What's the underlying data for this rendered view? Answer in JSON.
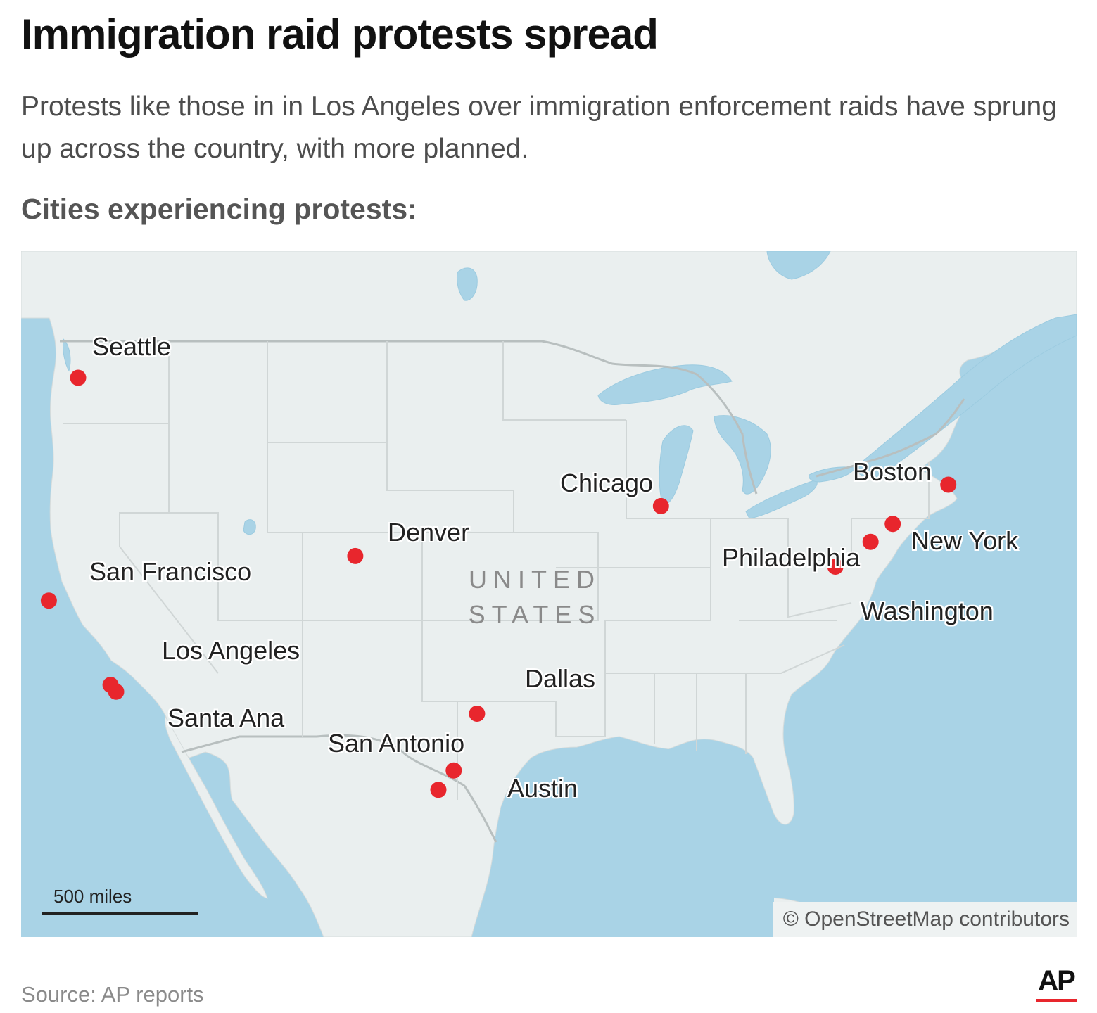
{
  "header": {
    "title": "Immigration raid protests spread",
    "subtitle": "Protests like those in in Los Angeles over immigration enforcement raids have sprung up across the country, with more planned.",
    "section_label": "Cities experiencing protests:"
  },
  "map": {
    "country_label_line1": "UNITED",
    "country_label_line2": "STATES",
    "scale_label": "500 miles",
    "attribution": "© OpenStreetMap contributors",
    "colors": {
      "water": "#a9d3e6",
      "land": "#eaefef",
      "border": "#cfd5d5",
      "marker": "#e8262d"
    },
    "cities": [
      {
        "name": "Seattle",
        "lat": 47.61,
        "lon": -122.33
      },
      {
        "name": "San Francisco",
        "lat": 37.77,
        "lon": -122.42
      },
      {
        "name": "Los Angeles",
        "lat": 34.05,
        "lon": -118.24
      },
      {
        "name": "Santa Ana",
        "lat": 33.75,
        "lon": -117.87
      },
      {
        "name": "Denver",
        "lat": 39.74,
        "lon": -104.99
      },
      {
        "name": "Dallas",
        "lat": 32.78,
        "lon": -96.8
      },
      {
        "name": "San Antonio",
        "lat": 29.42,
        "lon": -98.49
      },
      {
        "name": "Austin",
        "lat": 30.27,
        "lon": -97.74
      },
      {
        "name": "Chicago",
        "lat": 41.88,
        "lon": -87.63
      },
      {
        "name": "Boston",
        "lat": 42.36,
        "lon": -71.06
      },
      {
        "name": "New York",
        "lat": 40.71,
        "lon": -74.01
      },
      {
        "name": "Philadelphia",
        "lat": 39.95,
        "lon": -75.17
      },
      {
        "name": "Washington",
        "lat": 38.91,
        "lon": -77.04
      }
    ]
  },
  "footer": {
    "source": "Source: AP reports",
    "logo_text": "AP"
  }
}
